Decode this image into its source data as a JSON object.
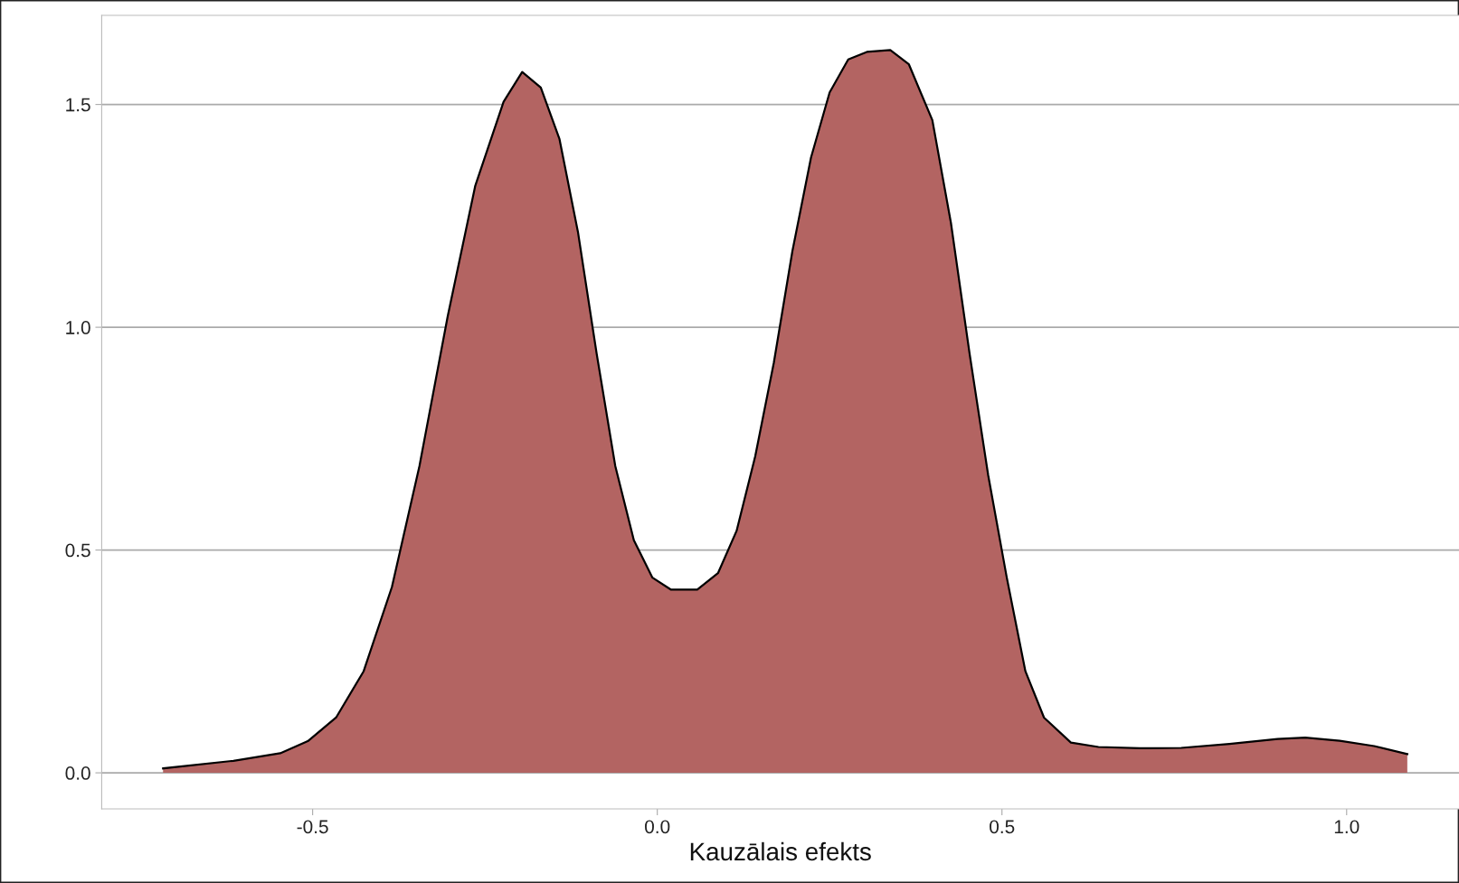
{
  "chart_data": {
    "type": "area",
    "xlabel": "Kauzālais efekts",
    "x": [
      -0.717,
      -0.615,
      -0.547,
      -0.507,
      -0.466,
      -0.426,
      -0.385,
      -0.345,
      -0.304,
      -0.264,
      -0.223,
      -0.196,
      -0.169,
      -0.142,
      -0.115,
      -0.088,
      -0.061,
      -0.034,
      -0.007,
      0.02,
      0.058,
      0.088,
      0.115,
      0.142,
      0.169,
      0.196,
      0.223,
      0.25,
      0.277,
      0.304,
      0.338,
      0.365,
      0.399,
      0.426,
      0.453,
      0.48,
      0.507,
      0.534,
      0.561,
      0.6,
      0.64,
      0.7,
      0.76,
      0.83,
      0.9,
      0.94,
      0.99,
      1.04,
      1.088
    ],
    "series": [
      {
        "color": "#b36462",
        "values": [
          0.01,
          0.027,
          0.044,
          0.071,
          0.124,
          0.228,
          0.417,
          0.689,
          1.025,
          1.318,
          1.506,
          1.573,
          1.538,
          1.423,
          1.213,
          0.941,
          0.689,
          0.522,
          0.438,
          0.411,
          0.411,
          0.448,
          0.543,
          0.71,
          0.92,
          1.171,
          1.381,
          1.527,
          1.601,
          1.618,
          1.622,
          1.59,
          1.465,
          1.234,
          0.941,
          0.668,
          0.438,
          0.228,
          0.124,
          0.068,
          0.058,
          0.055,
          0.056,
          0.065,
          0.076,
          0.079,
          0.072,
          0.06,
          0.042
        ]
      }
    ],
    "xlim": [
      -0.806,
      1.163
    ],
    "ylim": [
      -0.081,
      1.7
    ],
    "xticks": [
      {
        "value": -0.5,
        "label": "-0.5"
      },
      {
        "value": 0.0,
        "label": "0.0"
      },
      {
        "value": 0.5,
        "label": "0.5"
      },
      {
        "value": 1.0,
        "label": "1.0"
      }
    ],
    "yticks": [
      {
        "value": 0.0,
        "label": "0.0"
      },
      {
        "value": 0.5,
        "label": "0.5"
      },
      {
        "value": 1.0,
        "label": "1.0"
      },
      {
        "value": 1.5,
        "label": "1.5"
      }
    ],
    "grid": "y",
    "legend": false
  }
}
